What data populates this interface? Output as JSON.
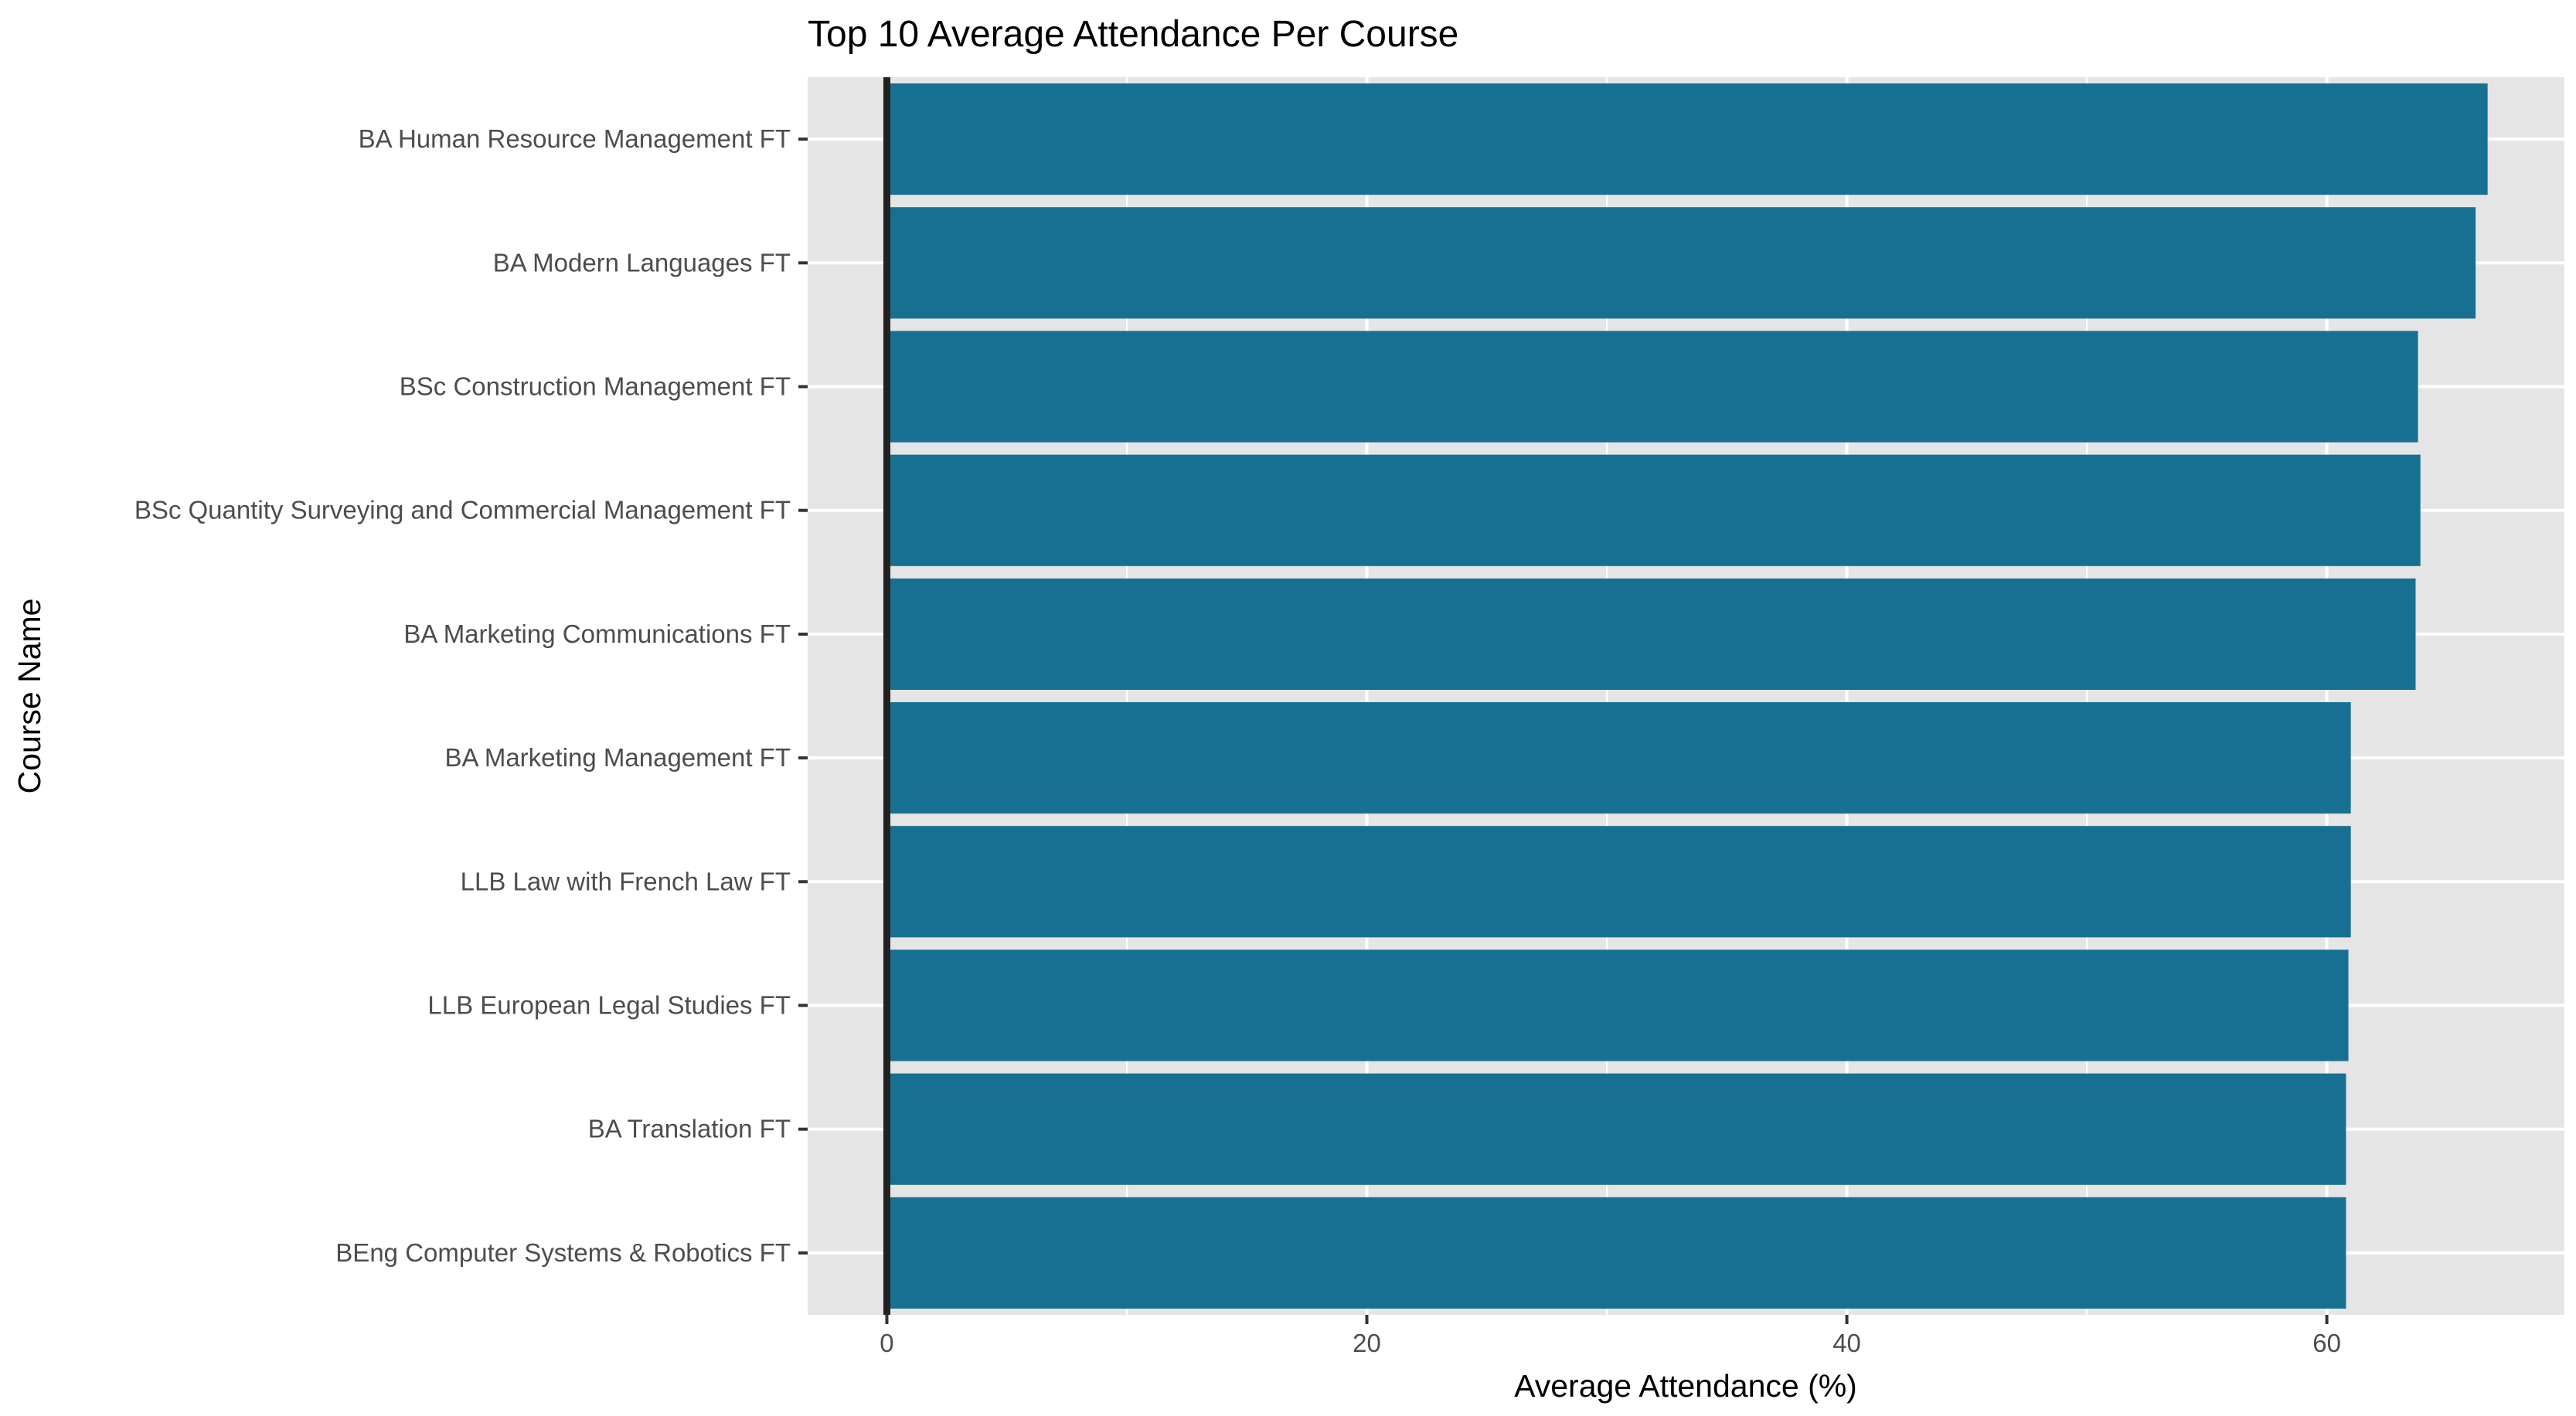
{
  "chart_data": {
    "type": "bar",
    "orientation": "horizontal",
    "title": "Top 10 Average Attendance Per Course",
    "xlabel": "Average Attendance (%)",
    "ylabel": "Course Name",
    "categories": [
      "BA Human Resource Management FT",
      "BA Modern Languages FT",
      "BSc Construction Management FT",
      "BSc Quantity Surveying and Commercial Management FT",
      "BA Marketing Communications FT",
      "BA Marketing Management FT",
      "LLB Law with French Law FT",
      "LLB European Legal Studies FT",
      "BA Translation FT",
      "BEng Computer Systems & Robotics FT"
    ],
    "values": [
      66.7,
      66.2,
      63.8,
      63.9,
      63.7,
      61.0,
      61.0,
      60.9,
      60.8,
      60.8
    ],
    "xlim": [
      -3.3,
      69.9
    ],
    "xticks": [
      0,
      20,
      40,
      60
    ],
    "grid": true,
    "legend": "none",
    "colors": {
      "bar": "#177091",
      "panel": "#e5e5e5",
      "grid": "#ffffff",
      "zero_line": "#222222"
    }
  }
}
